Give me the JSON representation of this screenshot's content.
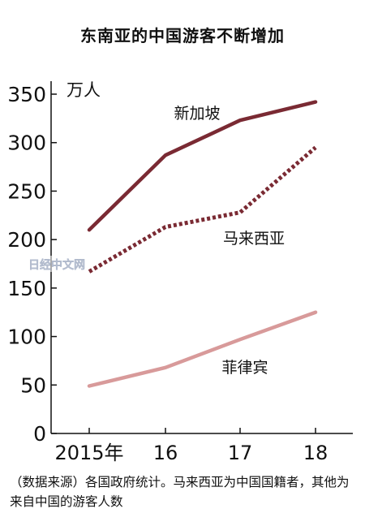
{
  "chart_data": {
    "type": "line",
    "title": "东南亚的中国游客不断增加",
    "unit": "万人",
    "categories": [
      "2015年",
      "16",
      "17",
      "18"
    ],
    "ylim": [
      0,
      350
    ],
    "yticks": [
      0,
      50,
      100,
      150,
      200,
      250,
      300,
      350
    ],
    "series": [
      {
        "name": "新加坡",
        "values": [
          210,
          287,
          323,
          342
        ],
        "color": "#7a2a33",
        "style": "solid"
      },
      {
        "name": "马来西亚",
        "values": [
          167,
          213,
          228,
          295
        ],
        "color": "#7a2a33",
        "style": "dotted"
      },
      {
        "name": "菲律宾",
        "values": [
          49,
          68,
          97,
          125
        ],
        "color": "#d89a9a",
        "style": "solid"
      }
    ],
    "grid": false,
    "legend": "inline labels"
  },
  "watermark": "日经中文网",
  "source_text": "（数据来源）各国政府统计。马来西亚为中国国籍者，其他为来自中国的游客人数"
}
